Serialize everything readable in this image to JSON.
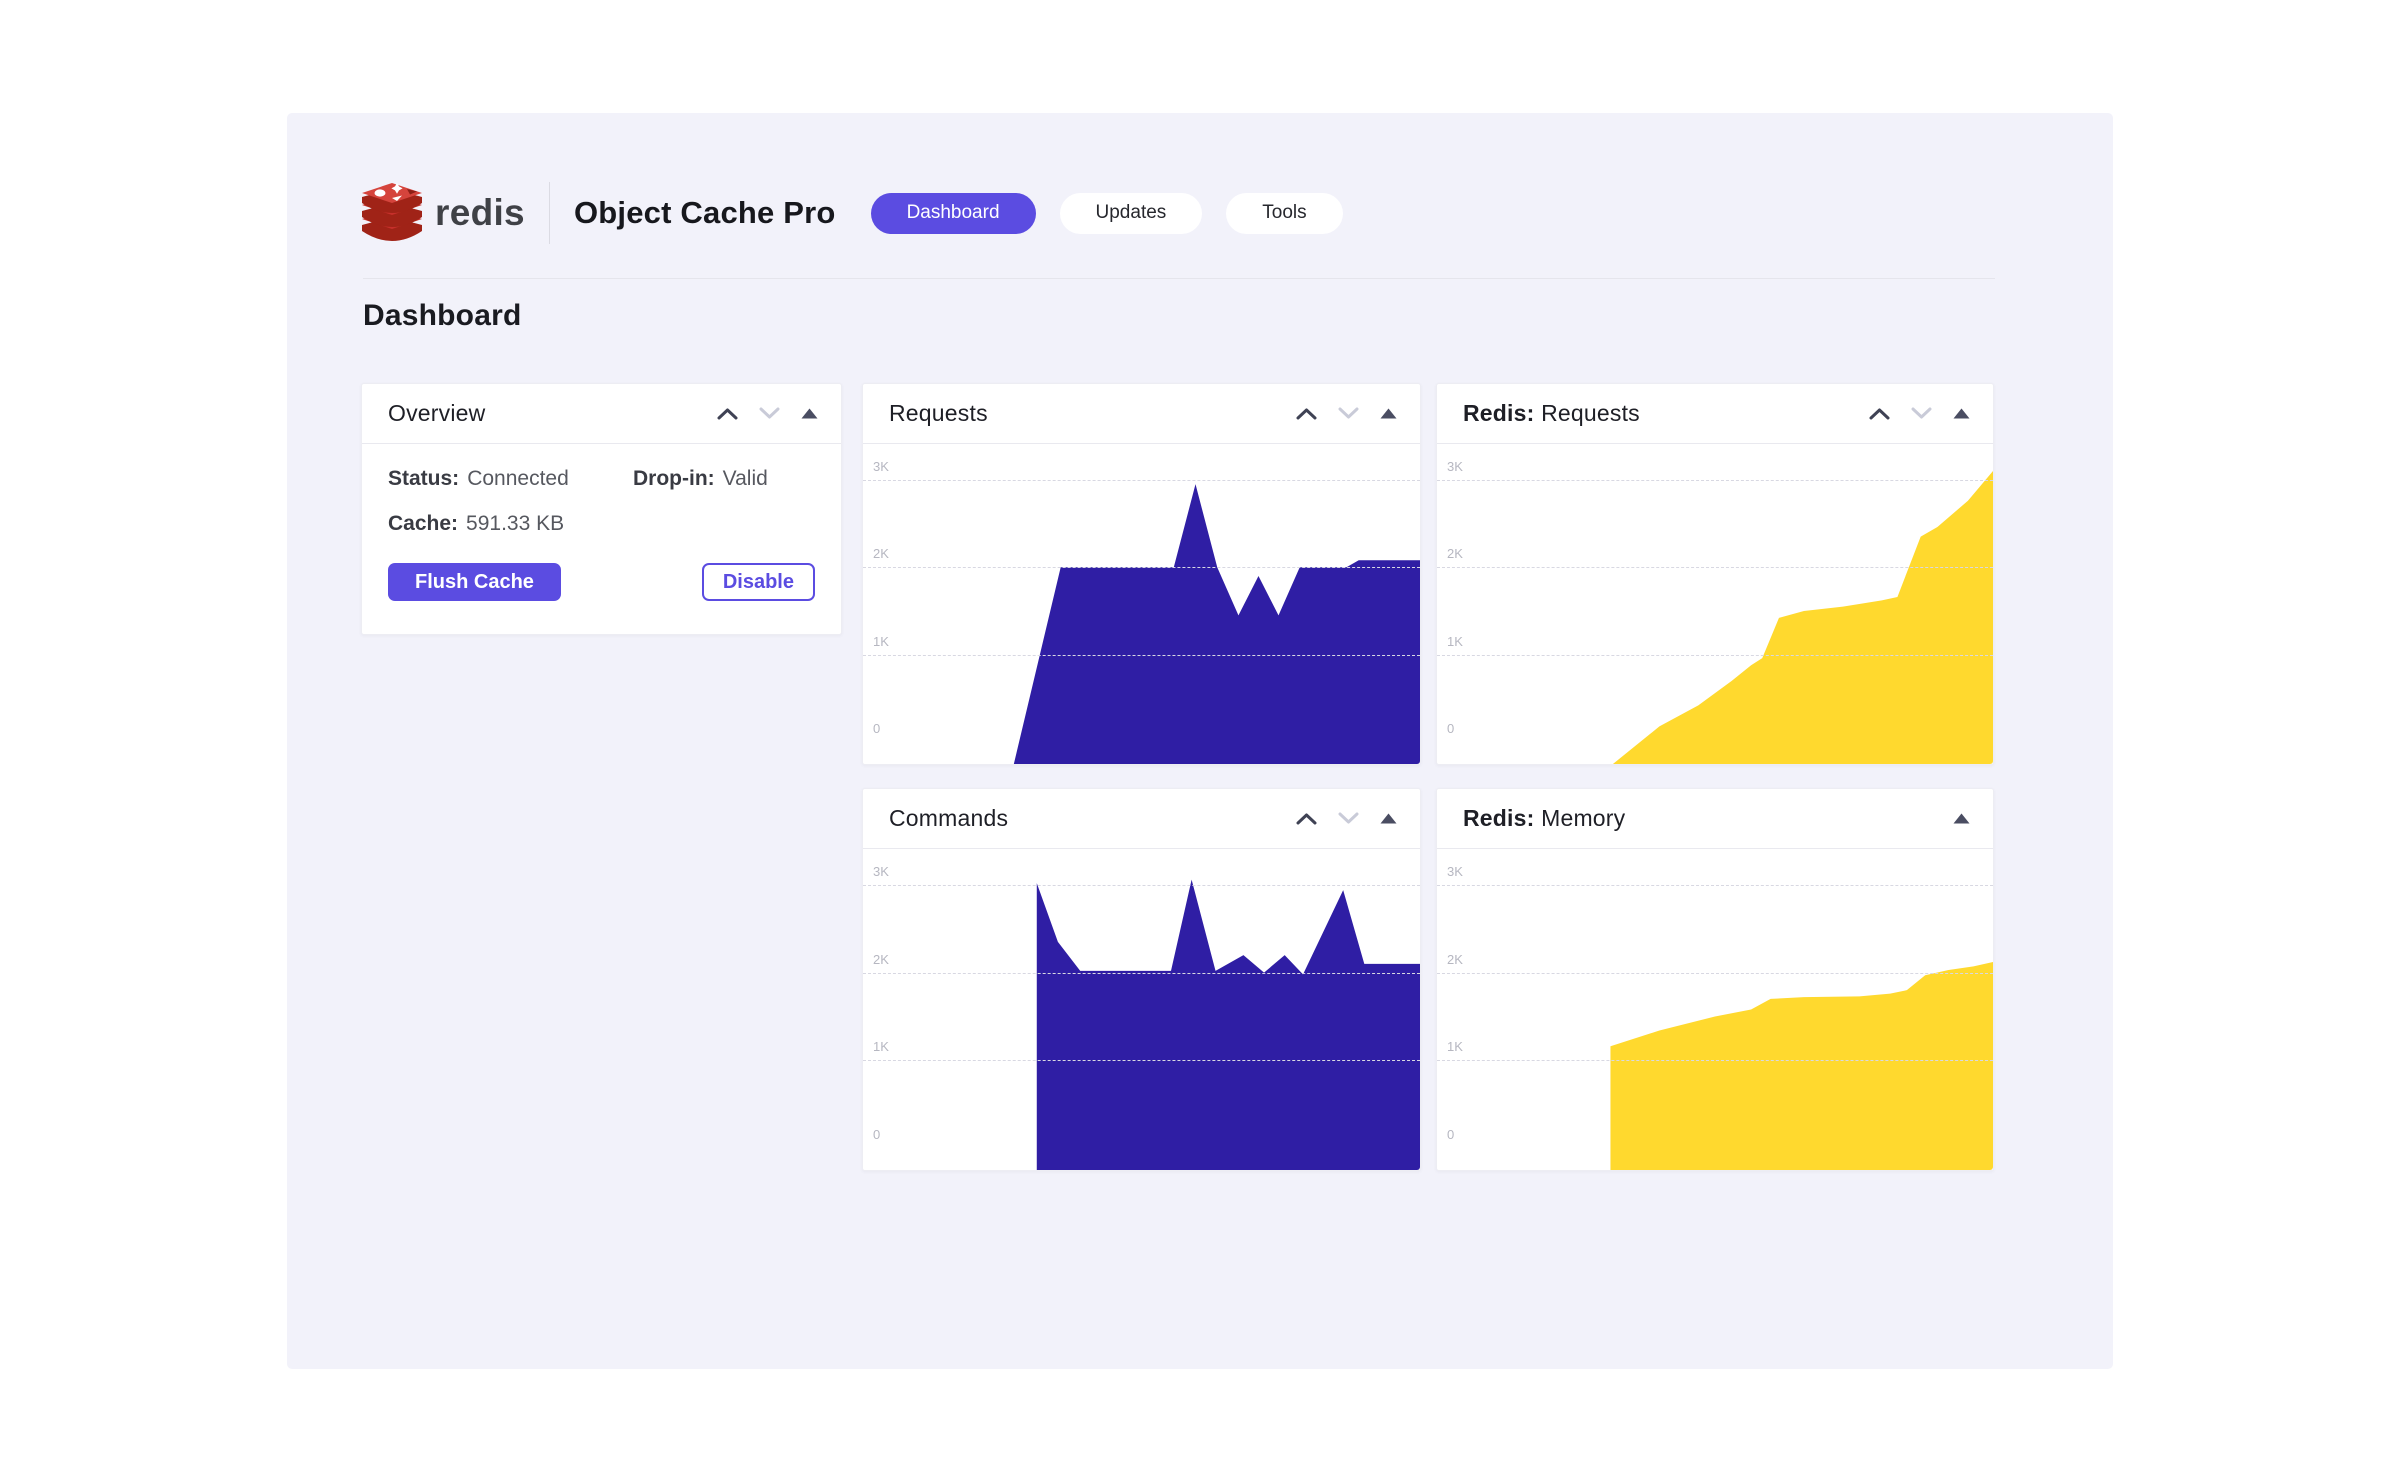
{
  "brand": {
    "wordmark": "redis",
    "product": "Object Cache Pro"
  },
  "nav": {
    "items": [
      {
        "label": "Dashboard",
        "active": true
      },
      {
        "label": "Updates",
        "active": false
      },
      {
        "label": "Tools",
        "active": false
      }
    ]
  },
  "page": {
    "heading": "Dashboard"
  },
  "overview": {
    "title": "Overview",
    "status_label": "Status:",
    "status_value": "Connected",
    "dropin_label": "Drop-in:",
    "dropin_value": "Valid",
    "cache_label": "Cache:",
    "cache_value": "591.33 KB",
    "flush_button": "Flush Cache",
    "disable_button": "Disable"
  },
  "colors": {
    "accent": "#5B4CE1",
    "chart_indigo": "#2F1EA4",
    "chart_yellow": "#FFD92E",
    "panel_bg": "#F2F2FA"
  },
  "chart_data": [
    {
      "id": "requests",
      "type": "area",
      "title_prefix": "",
      "title": "Requests",
      "color": "#2F1EA4",
      "ylim": [
        0,
        3.4
      ],
      "yticks": [
        {
          "label": "3K",
          "value": 3
        },
        {
          "label": "2K",
          "value": 2
        },
        {
          "label": "1K",
          "value": 1
        },
        {
          "label": "0",
          "value": 0
        }
      ],
      "grid": "dashed-horizontal",
      "legend": "none",
      "controls": [
        "up",
        "down",
        "collapse"
      ],
      "points": [
        [
          0.27,
          0
        ],
        [
          0.355,
          2.0
        ],
        [
          0.558,
          2.0
        ],
        [
          0.597,
          2.95
        ],
        [
          0.636,
          2.0
        ],
        [
          0.674,
          1.45
        ],
        [
          0.71,
          1.9
        ],
        [
          0.746,
          1.45
        ],
        [
          0.784,
          2.0
        ],
        [
          0.868,
          2.0
        ],
        [
          0.89,
          2.08
        ],
        [
          1,
          2.08
        ]
      ]
    },
    {
      "id": "commands",
      "type": "area",
      "title_prefix": "",
      "title": "Commands",
      "color": "#2F1EA4",
      "ylim": [
        0,
        3.4
      ],
      "yticks": [
        {
          "label": "3K",
          "value": 3
        },
        {
          "label": "2K",
          "value": 2
        },
        {
          "label": "1K",
          "value": 1
        },
        {
          "label": "0",
          "value": 0
        }
      ],
      "grid": "dashed-horizontal",
      "legend": "none",
      "controls": [
        "up",
        "down",
        "collapse"
      ],
      "points": [
        [
          0.312,
          0
        ],
        [
          0.312,
          3.02
        ],
        [
          0.35,
          2.35
        ],
        [
          0.39,
          2.02
        ],
        [
          0.553,
          2.02
        ],
        [
          0.59,
          3.06
        ],
        [
          0.633,
          2.02
        ],
        [
          0.683,
          2.2
        ],
        [
          0.72,
          2.0
        ],
        [
          0.757,
          2.2
        ],
        [
          0.79,
          1.98
        ],
        [
          0.862,
          2.94
        ],
        [
          0.9,
          2.1
        ],
        [
          1,
          2.1
        ]
      ]
    },
    {
      "id": "redis-requests",
      "type": "area",
      "title_prefix": "Redis:",
      "title": "Requests",
      "color": "#FFD92E",
      "ylim": [
        0,
        3.4
      ],
      "yticks": [
        {
          "label": "3K",
          "value": 3
        },
        {
          "label": "2K",
          "value": 2
        },
        {
          "label": "1K",
          "value": 1
        },
        {
          "label": "0",
          "value": 0
        }
      ],
      "grid": "dashed-horizontal",
      "legend": "none",
      "controls": [
        "up",
        "down",
        "collapse"
      ],
      "points": [
        [
          0.312,
          0
        ],
        [
          0.4,
          0.18
        ],
        [
          0.47,
          0.42
        ],
        [
          0.53,
          0.7
        ],
        [
          0.565,
          0.88
        ],
        [
          0.585,
          0.96
        ],
        [
          0.615,
          1.42
        ],
        [
          0.66,
          1.5
        ],
        [
          0.73,
          1.55
        ],
        [
          0.8,
          1.62
        ],
        [
          0.828,
          1.66
        ],
        [
          0.87,
          2.35
        ],
        [
          0.9,
          2.46
        ],
        [
          0.955,
          2.76
        ],
        [
          1,
          3.1
        ]
      ]
    },
    {
      "id": "redis-memory",
      "type": "area",
      "title_prefix": "Redis:",
      "title": "Memory",
      "color": "#FFD92E",
      "ylim": [
        0,
        3.4
      ],
      "yticks": [
        {
          "label": "3K",
          "value": 3
        },
        {
          "label": "2K",
          "value": 2
        },
        {
          "label": "1K",
          "value": 1
        },
        {
          "label": "0",
          "value": 0
        }
      ],
      "grid": "dashed-horizontal",
      "legend": "none",
      "controls": [
        "collapse"
      ],
      "points": [
        [
          0.312,
          0
        ],
        [
          0.312,
          1.16
        ],
        [
          0.4,
          1.34
        ],
        [
          0.5,
          1.5
        ],
        [
          0.565,
          1.58
        ],
        [
          0.6,
          1.7
        ],
        [
          0.66,
          1.72
        ],
        [
          0.76,
          1.73
        ],
        [
          0.815,
          1.76
        ],
        [
          0.845,
          1.8
        ],
        [
          0.878,
          1.97
        ],
        [
          0.92,
          2.03
        ],
        [
          0.965,
          2.07
        ],
        [
          1,
          2.12
        ]
      ]
    }
  ]
}
